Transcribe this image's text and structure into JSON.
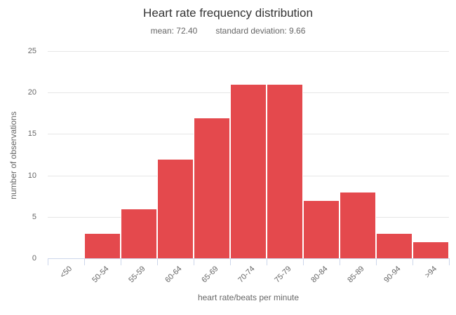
{
  "chart": {
    "title": "Heart rate frequency distribution",
    "subtitle": {
      "mean_label": "mean: 72.40",
      "std_label": "standard deviation: 9.66"
    },
    "xlabel": "heart rate/beats per minute",
    "ylabel": "number of observations"
  },
  "chart_data": {
    "type": "bar",
    "title": "Heart rate frequency distribution",
    "subtitle": "mean: 72.40  standard deviation: 9.66",
    "stats": {
      "mean": 72.4,
      "standard_deviation": 9.66
    },
    "categories": [
      "<50",
      "50-54",
      "55-59",
      "60-64",
      "65-69",
      "70-74",
      "75-79",
      "80-84",
      "85-89",
      "90-94",
      ">94"
    ],
    "values": [
      0,
      3,
      6,
      12,
      17,
      21,
      21,
      7,
      8,
      3,
      2
    ],
    "xlabel": "heart rate/beats per minute",
    "ylabel": "number of observations",
    "ylim": [
      0,
      25
    ],
    "yticks": [
      0,
      5,
      10,
      15,
      20,
      25
    ],
    "grid": true,
    "legend": false,
    "colors": {
      "bar": "#e4494d",
      "bar_border": "#ffffff",
      "gridline": "#e6e6e6",
      "axis_line": "#ccd6eb",
      "title_text": "#333333",
      "label_text": "#666666",
      "background": "#ffffff"
    }
  }
}
